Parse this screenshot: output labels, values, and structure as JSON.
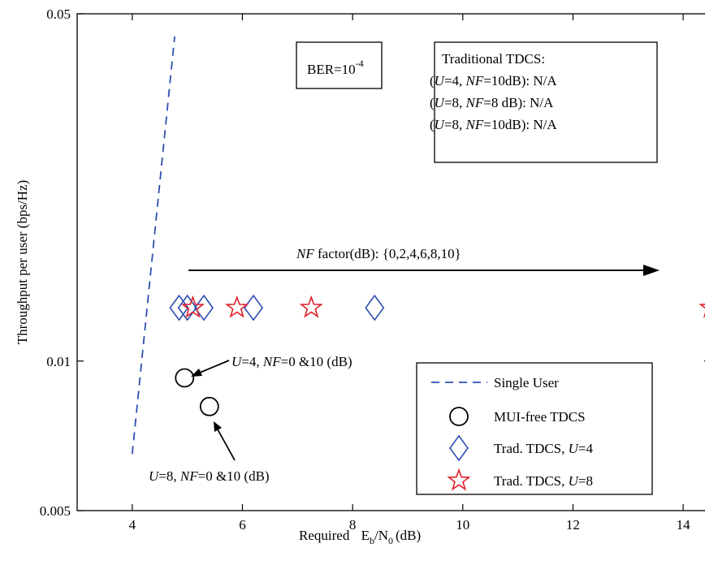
{
  "chart_data": {
    "type": "scatter",
    "xlabel_prefix": "Required",
    "xlabel_E": "E",
    "xlabel_Esub": "b",
    "xlabel_slash": "/N",
    "xlabel_Nsub": "0",
    "xlabel_unit": "(dB)",
    "ylabel": "Throughput per user (bps/Hz)",
    "xlim": [
      3,
      14.5
    ],
    "ylim": [
      0.005,
      0.05
    ],
    "yscale": "log",
    "xticks": [
      4,
      6,
      8,
      10,
      12,
      14
    ],
    "yticks": [
      {
        "value": 0.005,
        "label": "0.005"
      },
      {
        "value": 0.01,
        "label": "0.01"
      },
      {
        "value": 0.05,
        "label": "0.05"
      }
    ],
    "grid": false,
    "legend_position": "bottom-right",
    "series": [
      {
        "name": "Single User",
        "marker": "dashed-line",
        "color": "#2f4fb0",
        "x": [
          4.0,
          4.77
        ],
        "y": [
          0.0065,
          0.045
        ]
      },
      {
        "name": "MUI-free TDCS",
        "marker": "circle",
        "color": "#000000",
        "x": [
          4.95,
          5.4
        ],
        "y": [
          0.00925,
          0.0081
        ]
      },
      {
        "name_prefix": "Trad. TDCS, ",
        "name_italic": "U",
        "name_suffix": "=4",
        "marker": "diamond",
        "color": "#2f4fb0",
        "x": [
          4.85,
          5.0,
          5.3,
          6.2,
          8.4
        ],
        "y": [
          0.0128,
          0.0128,
          0.0128,
          0.0128,
          0.0128
        ]
      },
      {
        "name_prefix": "Trad. TDCS, ",
        "name_italic": "U",
        "name_suffix": "=8",
        "marker": "star",
        "color": "#e0202a",
        "x": [
          5.1,
          5.9,
          7.25,
          14.5
        ],
        "y": [
          0.0128,
          0.0128,
          0.0128,
          0.0128
        ]
      }
    ],
    "annotations": {
      "ber_box": {
        "base": "BER=10",
        "exp": "-4"
      },
      "trad_box": {
        "title": "Traditional TDCS:",
        "lines": [
          {
            "p1": "(",
            "u": "U",
            "p2": "=4, ",
            "nf": "NF",
            "p3": "=10dB): N/A"
          },
          {
            "p1": "(",
            "u": "U",
            "p2": "=8, ",
            "nf": "NF",
            "p3": "=8 dB): N/A"
          },
          {
            "p1": "(",
            "u": "U",
            "p2": "=8, ",
            "nf": "NF",
            "p3": "=10dB): N/A"
          }
        ]
      },
      "nf_arrow": {
        "nf": "NF",
        "rest": " factor(dB): {0,2,4,6,8,10}"
      },
      "u4_label": {
        "u": "U",
        "p1": "=4, ",
        "nf": "NF",
        "p2": "=0 &10 (dB)"
      },
      "u8_label": {
        "u": "U",
        "p1": "=8, ",
        "nf": "NF",
        "p2": "=0 &10 (dB)"
      }
    }
  }
}
